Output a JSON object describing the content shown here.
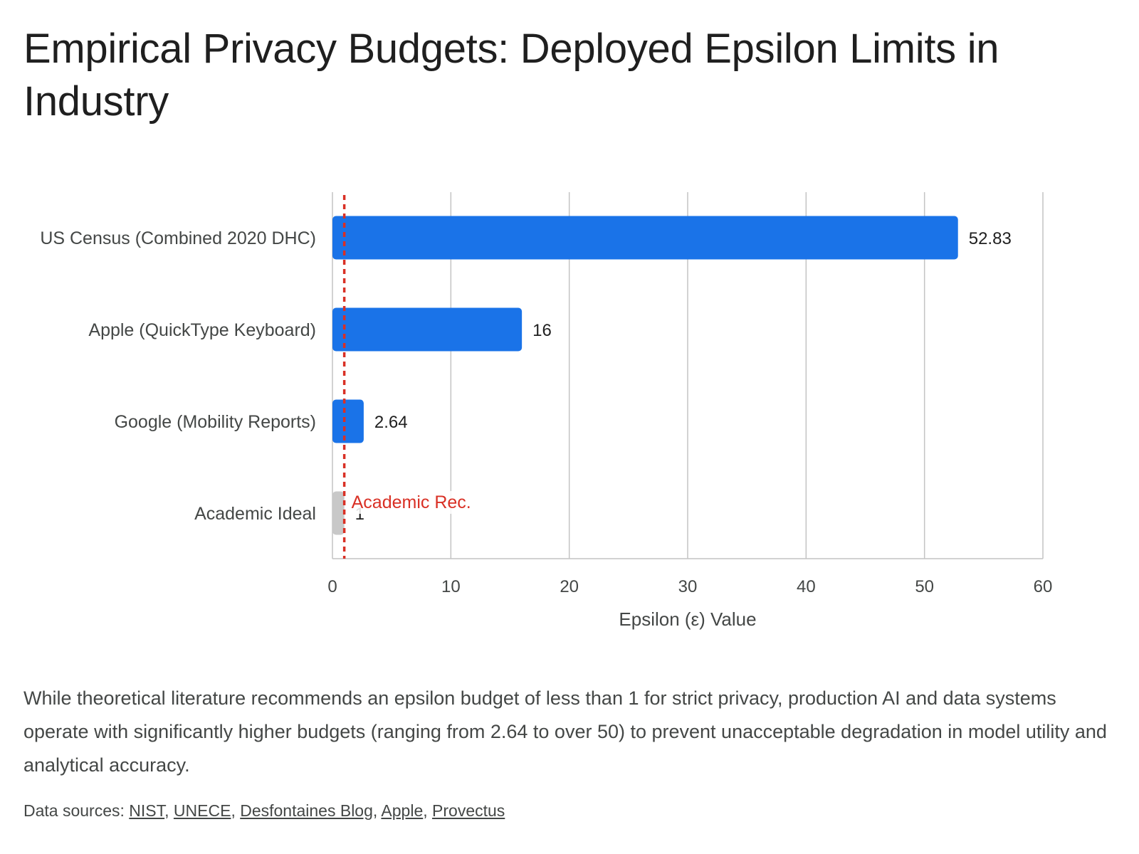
{
  "title": "Empirical Privacy Budgets: Deployed Epsilon Limits in Industry",
  "chart_data": {
    "type": "bar",
    "orientation": "horizontal",
    "categories": [
      "US Census (Combined 2020 DHC)",
      "Apple (QuickType Keyboard)",
      "Google (Mobility Reports)",
      "Academic Ideal"
    ],
    "values": [
      52.83,
      16,
      2.64,
      1
    ],
    "value_labels": [
      "52.83",
      "16",
      "2.64",
      "1"
    ],
    "bar_colors": [
      "#1a73e8",
      "#1a73e8",
      "#1a73e8",
      "#c8c8c8"
    ],
    "xlabel": "Epsilon (ε) Value",
    "xlim": [
      0,
      60
    ],
    "xticks": [
      0,
      10,
      20,
      30,
      40,
      50,
      60
    ],
    "grid": true,
    "reference_line": {
      "value": 1,
      "label": "Academic Rec.",
      "color": "#d93025",
      "style": "dotted"
    }
  },
  "caption": "While theoretical literature recommends an epsilon budget of less than 1 for strict privacy, production AI and data systems operate with significantly higher budgets (ranging from 2.64 to over 50) to prevent unacceptable degradation in model utility and analytical accuracy.",
  "sources": {
    "prefix": "Data sources: ",
    "links": [
      "NIST",
      "UNECE",
      "Desfontaines Blog",
      "Apple",
      "Provectus"
    ]
  }
}
